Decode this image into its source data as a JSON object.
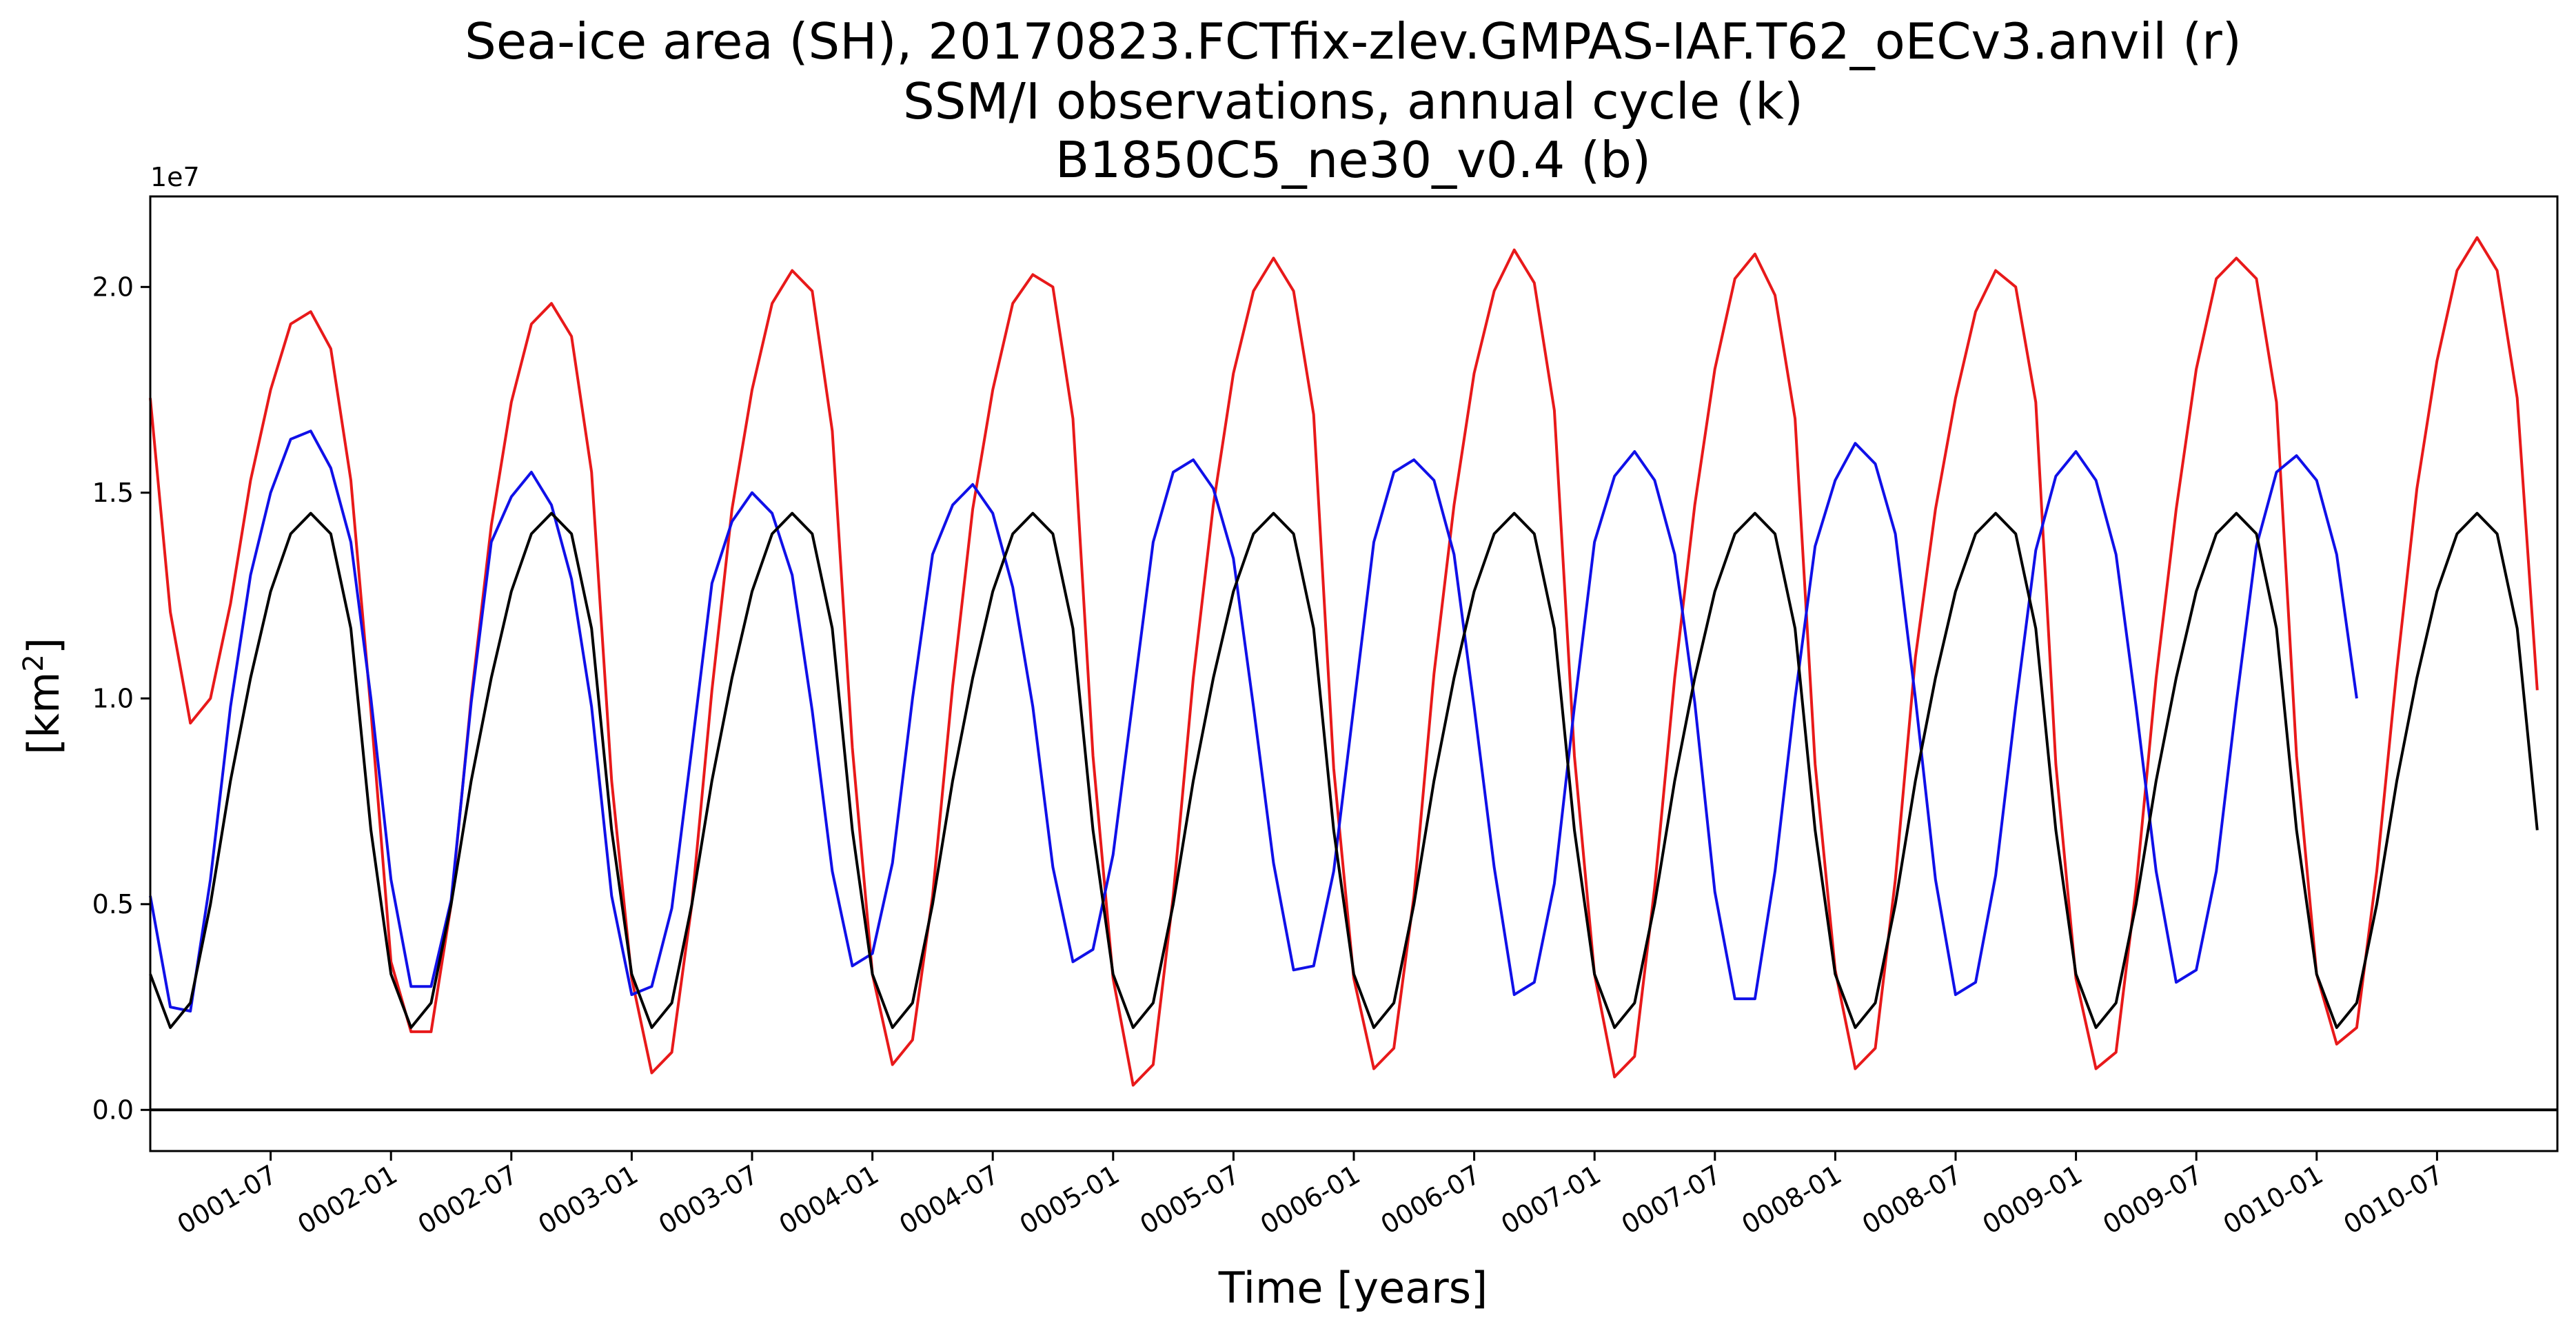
{
  "chart_data": {
    "type": "line",
    "title_lines": [
      "Sea-ice area (SH), 20170823.FCTfix-zlev.GMPAS-IAF.T62_oECv3.anvil (r)",
      "SSM/I observations, annual cycle (k)",
      "B1850C5_ne30_v0.4 (b)"
    ],
    "xlabel": "Time [years]",
    "ylabel_main": "[km",
    "ylabel_sup": "2",
    "ylabel_end": "]",
    "y_offset_label": "1e7",
    "x_range": [
      0.0,
      10.0
    ],
    "ylim": [
      -0.1,
      2.22
    ],
    "y_ticks": [
      0.0,
      0.5,
      1.0,
      1.5,
      2.0
    ],
    "y_tick_labels": [
      "0.0",
      "0.5",
      "1.0",
      "1.5",
      "2.0"
    ],
    "x_ticks": [
      0.5,
      1.0,
      1.5,
      2.0,
      2.5,
      3.0,
      3.5,
      4.0,
      4.5,
      5.0,
      5.5,
      6.0,
      6.5,
      7.0,
      7.5,
      8.0,
      8.5,
      9.0,
      9.5
    ],
    "x_tick_labels": [
      "0001-07",
      "0002-01",
      "0002-07",
      "0003-01",
      "0003-07",
      "0004-01",
      "0004-07",
      "0005-01",
      "0005-07",
      "0006-01",
      "0006-07",
      "0007-01",
      "0007-07",
      "0008-01",
      "0008-07",
      "0009-01",
      "0009-07",
      "0010-01",
      "0010-07"
    ],
    "zero_line": 0.0,
    "month_step_years": 0.08333,
    "series": [
      {
        "color": "#e8191a",
        "values": [
          1.73,
          1.21,
          0.94,
          1.0,
          1.23,
          1.53,
          1.75,
          1.91,
          1.94,
          1.85,
          1.53,
          0.97,
          0.36,
          0.19,
          0.19,
          0.5,
          1.0,
          1.42,
          1.72,
          1.91,
          1.96,
          1.88,
          1.55,
          0.8,
          0.32,
          0.09,
          0.14,
          0.5,
          1.02,
          1.46,
          1.75,
          1.96,
          2.04,
          1.99,
          1.65,
          0.88,
          0.33,
          0.11,
          0.17,
          0.52,
          1.03,
          1.46,
          1.75,
          1.96,
          2.03,
          2.0,
          1.68,
          0.86,
          0.32,
          0.06,
          0.11,
          0.52,
          1.05,
          1.47,
          1.79,
          1.99,
          2.07,
          1.99,
          1.69,
          0.83,
          0.32,
          0.1,
          0.15,
          0.52,
          1.06,
          1.47,
          1.79,
          1.99,
          2.09,
          2.01,
          1.7,
          0.86,
          0.33,
          0.08,
          0.13,
          0.54,
          1.05,
          1.47,
          1.8,
          2.02,
          2.08,
          1.98,
          1.68,
          0.84,
          0.34,
          0.1,
          0.15,
          0.56,
          1.1,
          1.46,
          1.73,
          1.94,
          2.04,
          2.0,
          1.72,
          0.84,
          0.32,
          0.1,
          0.14,
          0.54,
          1.05,
          1.46,
          1.8,
          2.02,
          2.07,
          2.02,
          1.72,
          0.86,
          0.33,
          0.16,
          0.2,
          0.58,
          1.07,
          1.51,
          1.82,
          2.04,
          2.12,
          2.04,
          1.73,
          1.02
        ]
      },
      {
        "color": "#1010e8",
        "values": [
          0.52,
          0.25,
          0.24,
          0.56,
          0.98,
          1.3,
          1.5,
          1.63,
          1.65,
          1.56,
          1.38,
          1.0,
          0.56,
          0.3,
          0.3,
          0.51,
          0.99,
          1.38,
          1.49,
          1.55,
          1.47,
          1.29,
          0.98,
          0.52,
          0.28,
          0.3,
          0.49,
          0.88,
          1.28,
          1.43,
          1.5,
          1.45,
          1.3,
          0.97,
          0.58,
          0.35,
          0.38,
          0.6,
          1.0,
          1.35,
          1.47,
          1.52,
          1.45,
          1.27,
          0.98,
          0.59,
          0.36,
          0.39,
          0.62,
          1.0,
          1.38,
          1.55,
          1.58,
          1.51,
          1.34,
          0.98,
          0.6,
          0.34,
          0.35,
          0.58,
          0.98,
          1.38,
          1.55,
          1.58,
          1.53,
          1.35,
          0.98,
          0.59,
          0.28,
          0.31,
          0.55,
          0.98,
          1.38,
          1.54,
          1.6,
          1.53,
          1.35,
          0.99,
          0.53,
          0.27,
          0.27,
          0.58,
          1.0,
          1.37,
          1.53,
          1.62,
          1.57,
          1.4,
          1.0,
          0.56,
          0.28,
          0.31,
          0.57,
          0.98,
          1.36,
          1.54,
          1.6,
          1.53,
          1.35,
          0.98,
          0.58,
          0.31,
          0.34,
          0.58,
          0.99,
          1.37,
          1.55,
          1.59,
          1.53,
          1.35,
          1.0
        ]
      },
      {
        "color": "#000000",
        "values": [
          0.33,
          0.2,
          0.26,
          0.5,
          0.8,
          1.05,
          1.26,
          1.4,
          1.45,
          1.4,
          1.17,
          0.68,
          0.33,
          0.2,
          0.26,
          0.5,
          0.8,
          1.05,
          1.26,
          1.4,
          1.45,
          1.4,
          1.17,
          0.68,
          0.33,
          0.2,
          0.26,
          0.5,
          0.8,
          1.05,
          1.26,
          1.4,
          1.45,
          1.4,
          1.17,
          0.68,
          0.33,
          0.2,
          0.26,
          0.5,
          0.8,
          1.05,
          1.26,
          1.4,
          1.45,
          1.4,
          1.17,
          0.68,
          0.33,
          0.2,
          0.26,
          0.5,
          0.8,
          1.05,
          1.26,
          1.4,
          1.45,
          1.4,
          1.17,
          0.68,
          0.33,
          0.2,
          0.26,
          0.5,
          0.8,
          1.05,
          1.26,
          1.4,
          1.45,
          1.4,
          1.17,
          0.68,
          0.33,
          0.2,
          0.26,
          0.5,
          0.8,
          1.05,
          1.26,
          1.4,
          1.45,
          1.4,
          1.17,
          0.68,
          0.33,
          0.2,
          0.26,
          0.5,
          0.8,
          1.05,
          1.26,
          1.4,
          1.45,
          1.4,
          1.17,
          0.68,
          0.33,
          0.2,
          0.26,
          0.5,
          0.8,
          1.05,
          1.26,
          1.4,
          1.45,
          1.4,
          1.17,
          0.68,
          0.33,
          0.2,
          0.26,
          0.5,
          0.8,
          1.05,
          1.26,
          1.4,
          1.45,
          1.4,
          1.17,
          0.68
        ]
      }
    ]
  }
}
